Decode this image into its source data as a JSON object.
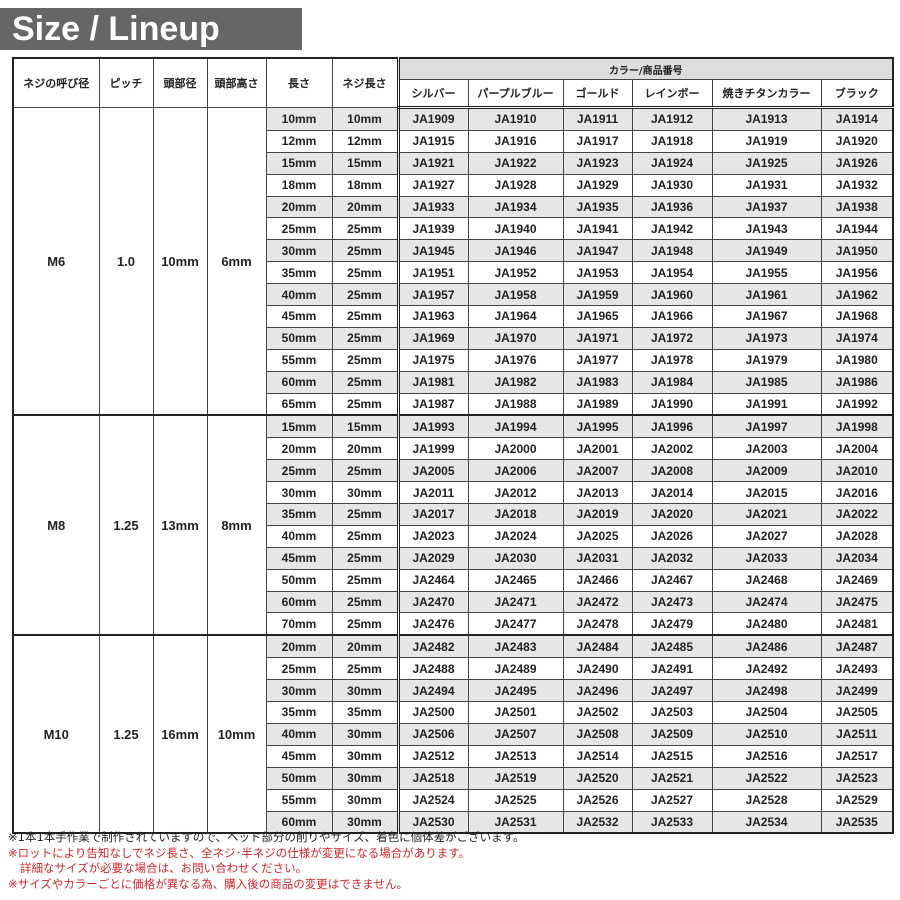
{
  "title": "Size / Lineup",
  "headers": {
    "nominal": "ネジの呼び径",
    "pitch": "ピッチ",
    "head_dia": "頭部径",
    "head_height": "頭部高さ",
    "length": "長さ",
    "thread_length": "ネジ長さ",
    "color_group": "カラー/商品番号",
    "colors": [
      "シルバー",
      "パープルブルー",
      "ゴールド",
      "レインボー",
      "焼きチタンカラー",
      "ブラック"
    ]
  },
  "groups": [
    {
      "nominal": "M6",
      "pitch": "1.0",
      "head_dia": "10mm",
      "head_height": "6mm",
      "rows": [
        [
          "10mm",
          "10mm",
          "JA1909",
          "JA1910",
          "JA1911",
          "JA1912",
          "JA1913",
          "JA1914"
        ],
        [
          "12mm",
          "12mm",
          "JA1915",
          "JA1916",
          "JA1917",
          "JA1918",
          "JA1919",
          "JA1920"
        ],
        [
          "15mm",
          "15mm",
          "JA1921",
          "JA1922",
          "JA1923",
          "JA1924",
          "JA1925",
          "JA1926"
        ],
        [
          "18mm",
          "18mm",
          "JA1927",
          "JA1928",
          "JA1929",
          "JA1930",
          "JA1931",
          "JA1932"
        ],
        [
          "20mm",
          "20mm",
          "JA1933",
          "JA1934",
          "JA1935",
          "JA1936",
          "JA1937",
          "JA1938"
        ],
        [
          "25mm",
          "25mm",
          "JA1939",
          "JA1940",
          "JA1941",
          "JA1942",
          "JA1943",
          "JA1944"
        ],
        [
          "30mm",
          "25mm",
          "JA1945",
          "JA1946",
          "JA1947",
          "JA1948",
          "JA1949",
          "JA1950"
        ],
        [
          "35mm",
          "25mm",
          "JA1951",
          "JA1952",
          "JA1953",
          "JA1954",
          "JA1955",
          "JA1956"
        ],
        [
          "40mm",
          "25mm",
          "JA1957",
          "JA1958",
          "JA1959",
          "JA1960",
          "JA1961",
          "JA1962"
        ],
        [
          "45mm",
          "25mm",
          "JA1963",
          "JA1964",
          "JA1965",
          "JA1966",
          "JA1967",
          "JA1968"
        ],
        [
          "50mm",
          "25mm",
          "JA1969",
          "JA1970",
          "JA1971",
          "JA1972",
          "JA1973",
          "JA1974"
        ],
        [
          "55mm",
          "25mm",
          "JA1975",
          "JA1976",
          "JA1977",
          "JA1978",
          "JA1979",
          "JA1980"
        ],
        [
          "60mm",
          "25mm",
          "JA1981",
          "JA1982",
          "JA1983",
          "JA1984",
          "JA1985",
          "JA1986"
        ],
        [
          "65mm",
          "25mm",
          "JA1987",
          "JA1988",
          "JA1989",
          "JA1990",
          "JA1991",
          "JA1992"
        ]
      ]
    },
    {
      "nominal": "M8",
      "pitch": "1.25",
      "head_dia": "13mm",
      "head_height": "8mm",
      "rows": [
        [
          "15mm",
          "15mm",
          "JA1993",
          "JA1994",
          "JA1995",
          "JA1996",
          "JA1997",
          "JA1998"
        ],
        [
          "20mm",
          "20mm",
          "JA1999",
          "JA2000",
          "JA2001",
          "JA2002",
          "JA2003",
          "JA2004"
        ],
        [
          "25mm",
          "25mm",
          "JA2005",
          "JA2006",
          "JA2007",
          "JA2008",
          "JA2009",
          "JA2010"
        ],
        [
          "30mm",
          "30mm",
          "JA2011",
          "JA2012",
          "JA2013",
          "JA2014",
          "JA2015",
          "JA2016"
        ],
        [
          "35mm",
          "25mm",
          "JA2017",
          "JA2018",
          "JA2019",
          "JA2020",
          "JA2021",
          "JA2022"
        ],
        [
          "40mm",
          "25mm",
          "JA2023",
          "JA2024",
          "JA2025",
          "JA2026",
          "JA2027",
          "JA2028"
        ],
        [
          "45mm",
          "25mm",
          "JA2029",
          "JA2030",
          "JA2031",
          "JA2032",
          "JA2033",
          "JA2034"
        ],
        [
          "50mm",
          "25mm",
          "JA2464",
          "JA2465",
          "JA2466",
          "JA2467",
          "JA2468",
          "JA2469"
        ],
        [
          "60mm",
          "25mm",
          "JA2470",
          "JA2471",
          "JA2472",
          "JA2473",
          "JA2474",
          "JA2475"
        ],
        [
          "70mm",
          "25mm",
          "JA2476",
          "JA2477",
          "JA2478",
          "JA2479",
          "JA2480",
          "JA2481"
        ]
      ]
    },
    {
      "nominal": "M10",
      "pitch": "1.25",
      "head_dia": "16mm",
      "head_height": "10mm",
      "rows": [
        [
          "20mm",
          "20mm",
          "JA2482",
          "JA2483",
          "JA2484",
          "JA2485",
          "JA2486",
          "JA2487"
        ],
        [
          "25mm",
          "25mm",
          "JA2488",
          "JA2489",
          "JA2490",
          "JA2491",
          "JA2492",
          "JA2493"
        ],
        [
          "30mm",
          "30mm",
          "JA2494",
          "JA2495",
          "JA2496",
          "JA2497",
          "JA2498",
          "JA2499"
        ],
        [
          "35mm",
          "35mm",
          "JA2500",
          "JA2501",
          "JA2502",
          "JA2503",
          "JA2504",
          "JA2505"
        ],
        [
          "40mm",
          "30mm",
          "JA2506",
          "JA2507",
          "JA2508",
          "JA2509",
          "JA2510",
          "JA2511"
        ],
        [
          "45mm",
          "30mm",
          "JA2512",
          "JA2513",
          "JA2514",
          "JA2515",
          "JA2516",
          "JA2517"
        ],
        [
          "50mm",
          "30mm",
          "JA2518",
          "JA2519",
          "JA2520",
          "JA2521",
          "JA2522",
          "JA2523"
        ],
        [
          "55mm",
          "30mm",
          "JA2524",
          "JA2525",
          "JA2526",
          "JA2527",
          "JA2528",
          "JA2529"
        ],
        [
          "60mm",
          "30mm",
          "JA2530",
          "JA2531",
          "JA2532",
          "JA2533",
          "JA2534",
          "JA2535"
        ]
      ]
    }
  ],
  "notes": [
    {
      "text": "※1本1本手作業で制作されていますので、ヘッド部分の削りやサイズ、着色に個体差がございます。",
      "color": "#222222"
    },
    {
      "text": "※ロットにより告知なしでネジ長さ、全ネジ･半ネジの仕様が変更になる場合があります。",
      "color": "#d0262b"
    },
    {
      "text": "詳細なサイズが必要な場合は、お問い合わせください。",
      "color": "#d0262b"
    },
    {
      "text": "※サイズやカラーごとに価格が異なる為、購入後の商品の変更はできません。",
      "color": "#d0262b"
    }
  ],
  "colors": {
    "title_bg": "#666666",
    "row_shade": "#e6e6e6",
    "header_shade": "#dddddd",
    "note_red": "#d0262b"
  }
}
